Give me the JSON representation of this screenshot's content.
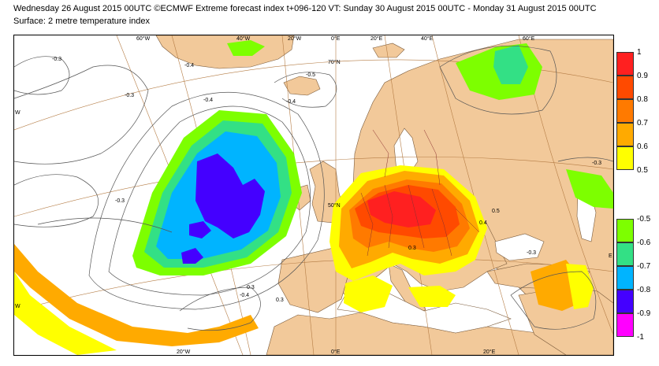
{
  "header": {
    "line1": "Wednesday 26 August 2015 00UTC ©ECMWF Extreme forecast index t+096-120 VT: Sunday 30 August 2015 00UTC - Monday 31 August 2015 00UTC",
    "line2": "Surface: 2 metre temperature index"
  },
  "grid_labels": {
    "top": [
      "60°W",
      "40°W",
      "20°W",
      "0°E",
      "20°E",
      "40°E",
      "60°E"
    ],
    "bottom": [
      "20°W",
      "0°E",
      "20°E"
    ],
    "lat_70": "70°N",
    "lat_50": "50°N",
    "left_w1": "W",
    "left_w2": "W",
    "right_e": "E"
  },
  "contour_labels": [
    "-0.3",
    "-0.4",
    "-0.3",
    "-0.4",
    "-0.3",
    "-0.4",
    "-0.5",
    "-0.3",
    "-0.4",
    "0.3",
    "0.4",
    "0.3",
    "0.5",
    "-0.3",
    "0.3"
  ],
  "legend_positive": {
    "colors": [
      "#ff2020",
      "#ff4a00",
      "#ff7a00",
      "#ffaa00",
      "#ffff00"
    ],
    "labels": [
      "1",
      "0.9",
      "0.8",
      "0.7",
      "0.6",
      "0.5"
    ]
  },
  "legend_negative": {
    "colors": [
      "#7dff00",
      "#33e085",
      "#00b4ff",
      "#4400ff",
      "#ff00ff"
    ],
    "labels": [
      "-0.5",
      "-0.6",
      "-0.7",
      "-0.8",
      "-0.9",
      "-1"
    ]
  },
  "palette": {
    "land": "#f2c99a",
    "sea": "#ffffff",
    "contour": "#555555",
    "border": "#8b2f2f",
    "grid": "#b57d46"
  }
}
